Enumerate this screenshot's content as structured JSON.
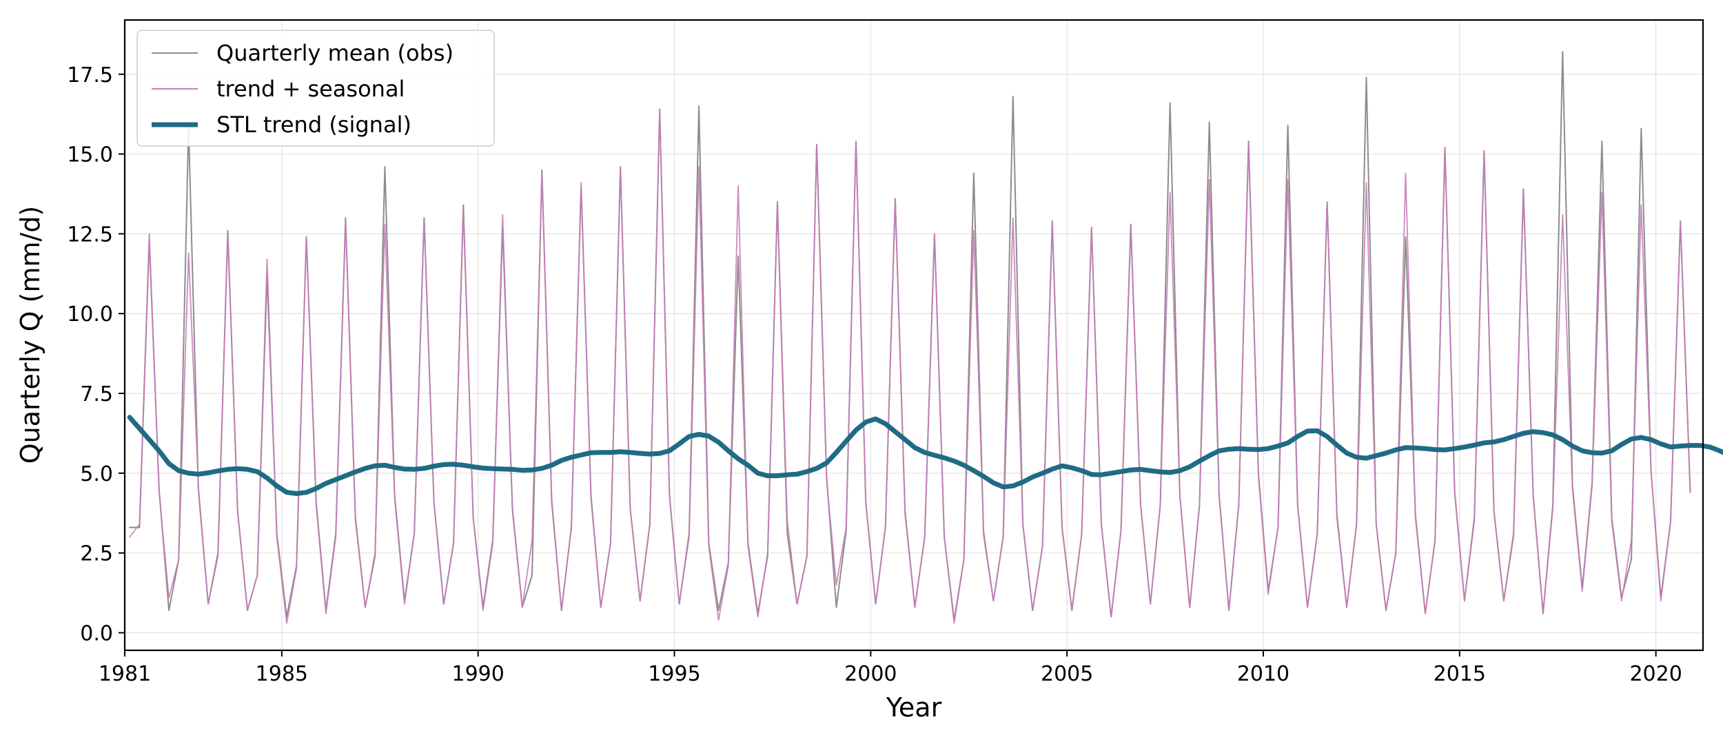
{
  "chart_data": {
    "type": "line",
    "xlabel": "Year",
    "ylabel": "Quarterly Q (mm/d)",
    "xlim": [
      1981,
      2021.2
    ],
    "ylim": [
      -0.55,
      19.2
    ],
    "x_ticks": [
      1981,
      1985,
      1990,
      1995,
      2000,
      2005,
      2010,
      2015,
      2020
    ],
    "x_tick_labels": [
      "1981",
      "1985",
      "1990",
      "1995",
      "2000",
      "2005",
      "2010",
      "2015",
      "2020"
    ],
    "y_ticks": [
      0.0,
      2.5,
      5.0,
      7.5,
      10.0,
      12.5,
      15.0,
      17.5
    ],
    "y_tick_labels": [
      "0.0",
      "2.5",
      "5.0",
      "7.5",
      "10.0",
      "12.5",
      "15.0",
      "17.5"
    ],
    "grid": true,
    "legend_position": "upper-left",
    "x_start": 1981.125,
    "x_step": 0.25,
    "series": [
      {
        "name": "Quarterly mean (obs)",
        "color": "#8c8c8c",
        "values": [
          3.3,
          3.3,
          12.3,
          4.5,
          0.7,
          2.3,
          15.9,
          4.5,
          0.9,
          2.5,
          12.6,
          3.8,
          0.7,
          1.8,
          11.2,
          3.1,
          0.5,
          2.1,
          12.4,
          4.1,
          0.7,
          3.1,
          13.0,
          3.6,
          0.8,
          2.4,
          14.6,
          4.3,
          1.0,
          3.1,
          13.0,
          4.1,
          0.9,
          2.8,
          13.4,
          3.6,
          0.8,
          2.9,
          12.7,
          3.9,
          0.8,
          1.8,
          14.5,
          4.1,
          0.7,
          3.3,
          14.0,
          4.3,
          0.8,
          2.8,
          14.6,
          3.9,
          1.0,
          3.4,
          16.4,
          4.3,
          0.9,
          3.1,
          16.5,
          2.8,
          0.7,
          2.2,
          11.8,
          2.8,
          0.6,
          2.4,
          13.5,
          3.1,
          0.9,
          2.4,
          15.3,
          4.9,
          0.8,
          3.2,
          15.4,
          4.1,
          0.9,
          3.3,
          13.6,
          3.8,
          0.8,
          3.0,
          12.5,
          3.0,
          0.4,
          2.3,
          14.4,
          3.1,
          1.0,
          3.0,
          16.8,
          3.4,
          0.7,
          2.7,
          12.9,
          3.3,
          0.7,
          3.1,
          12.7,
          3.4,
          0.5,
          3.2,
          12.8,
          4.0,
          0.9,
          4.0,
          16.6,
          4.3,
          0.8,
          4.0,
          16.0,
          4.3,
          0.7,
          4.0,
          15.4,
          5.0,
          1.3,
          3.3,
          15.9,
          4.0,
          0.8,
          3.1,
          13.5,
          3.7,
          0.8,
          3.4,
          17.4,
          3.4,
          0.7,
          2.5,
          12.4,
          3.7,
          0.6,
          2.9,
          15.2,
          4.4,
          1.0,
          3.6,
          15.1,
          3.8,
          1.0,
          3.1,
          13.9,
          4.3,
          0.6,
          4.0,
          18.2,
          4.6,
          1.4,
          4.7,
          15.4,
          3.6,
          1.1,
          2.3,
          15.8,
          5.1,
          1.1,
          3.5,
          12.9,
          4.4
        ]
      },
      {
        "name": "trend + seasonal",
        "color": "#c77cb8",
        "values": [
          3.0,
          3.4,
          12.5,
          4.4,
          1.1,
          2.3,
          11.9,
          4.6,
          0.9,
          2.4,
          12.5,
          3.8,
          0.7,
          1.8,
          11.7,
          3.0,
          0.3,
          2.0,
          12.4,
          4.0,
          0.6,
          3.0,
          12.9,
          3.5,
          0.8,
          2.5,
          12.8,
          4.2,
          0.9,
          3.1,
          13.0,
          4.1,
          0.9,
          2.8,
          13.3,
          3.6,
          0.7,
          2.8,
          13.1,
          3.8,
          0.8,
          2.9,
          14.4,
          4.2,
          0.7,
          3.3,
          14.1,
          4.2,
          0.8,
          2.8,
          14.6,
          3.9,
          1.0,
          3.4,
          16.4,
          4.3,
          0.9,
          3.0,
          14.6,
          2.7,
          0.4,
          2.1,
          14.0,
          2.7,
          0.5,
          2.5,
          13.5,
          3.5,
          0.9,
          2.4,
          15.3,
          4.8,
          1.5,
          3.3,
          15.4,
          4.1,
          0.9,
          3.3,
          13.6,
          3.7,
          0.8,
          3.0,
          12.5,
          3.0,
          0.3,
          2.3,
          12.6,
          3.2,
          1.0,
          3.0,
          13.0,
          3.4,
          0.7,
          2.7,
          12.9,
          3.3,
          0.7,
          3.1,
          12.7,
          3.4,
          0.5,
          3.2,
          12.7,
          4.0,
          0.9,
          4.0,
          13.8,
          4.3,
          0.8,
          4.0,
          14.2,
          4.3,
          0.7,
          4.0,
          15.3,
          4.9,
          1.2,
          3.3,
          14.2,
          4.0,
          0.8,
          3.1,
          13.5,
          3.6,
          0.8,
          3.4,
          14.1,
          3.4,
          0.7,
          2.5,
          14.4,
          3.6,
          0.6,
          2.9,
          15.2,
          4.4,
          1.0,
          3.5,
          15.1,
          3.8,
          1.0,
          3.0,
          13.8,
          4.3,
          0.6,
          3.9,
          13.1,
          4.5,
          1.3,
          4.6,
          13.8,
          3.5,
          1.0,
          2.9,
          13.4,
          5.1,
          1.0,
          3.5,
          12.9,
          4.4
        ]
      },
      {
        "name": "STL trend (signal)",
        "color": "#1f6b85",
        "values": [
          6.75,
          6.4,
          6.05,
          5.7,
          5.3,
          5.08,
          5.0,
          4.97,
          5.01,
          5.07,
          5.12,
          5.14,
          5.12,
          5.05,
          4.85,
          4.6,
          4.4,
          4.36,
          4.4,
          4.52,
          4.68,
          4.8,
          4.92,
          5.04,
          5.15,
          5.23,
          5.25,
          5.18,
          5.13,
          5.12,
          5.15,
          5.22,
          5.27,
          5.28,
          5.25,
          5.2,
          5.16,
          5.14,
          5.13,
          5.12,
          5.09,
          5.1,
          5.15,
          5.25,
          5.4,
          5.5,
          5.57,
          5.64,
          5.65,
          5.65,
          5.67,
          5.65,
          5.62,
          5.6,
          5.62,
          5.7,
          5.92,
          6.15,
          6.22,
          6.16,
          5.97,
          5.7,
          5.45,
          5.25,
          5.0,
          4.92,
          4.92,
          4.95,
          4.97,
          5.05,
          5.15,
          5.32,
          5.65,
          6.0,
          6.35,
          6.6,
          6.7,
          6.55,
          6.3,
          6.05,
          5.8,
          5.65,
          5.56,
          5.48,
          5.38,
          5.25,
          5.08,
          4.9,
          4.7,
          4.57,
          4.6,
          4.72,
          4.88,
          5.0,
          5.13,
          5.23,
          5.17,
          5.08,
          4.96,
          4.95,
          5.0,
          5.05,
          5.1,
          5.12,
          5.08,
          5.04,
          5.02,
          5.08,
          5.2,
          5.38,
          5.55,
          5.7,
          5.75,
          5.77,
          5.75,
          5.74,
          5.77,
          5.85,
          5.95,
          6.15,
          6.32,
          6.33,
          6.15,
          5.88,
          5.63,
          5.5,
          5.47,
          5.55,
          5.63,
          5.73,
          5.8,
          5.79,
          5.77,
          5.74,
          5.73,
          5.77,
          5.82,
          5.88,
          5.95,
          5.98,
          6.05,
          6.15,
          6.25,
          6.3,
          6.27,
          6.2,
          6.05,
          5.85,
          5.7,
          5.64,
          5.63,
          5.7,
          5.9,
          6.07,
          6.12,
          6.05,
          5.92,
          5.82,
          5.85,
          5.87,
          5.87,
          5.82,
          5.7,
          5.55,
          5.4
        ]
      }
    ]
  }
}
